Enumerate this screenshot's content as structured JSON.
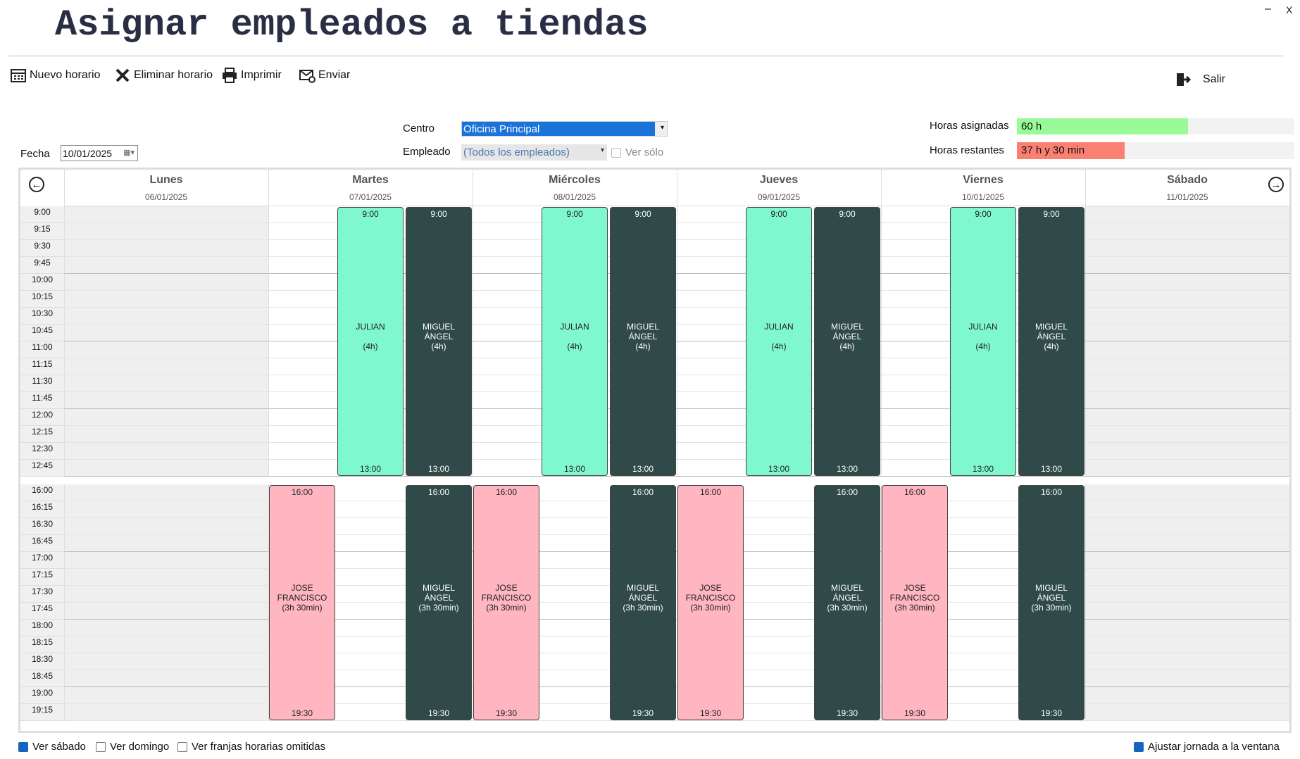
{
  "header": {
    "title": "Asignar empleados a tiendas",
    "minimize": "–",
    "close": "X"
  },
  "toolbar": [
    "Nuevo horario",
    "Eliminar horario",
    "Imprimir",
    "Enviar"
  ],
  "exit": "Salir",
  "filters": {
    "date_label": "Fecha",
    "date": "10/01/2025",
    "center_label": "Centro",
    "center": "Oficina Principal",
    "employee_label": "Empleado",
    "employee": "(Todos los empleados)",
    "only_label": "Ver sólo"
  },
  "hours": {
    "assigned_label": "Horas asignadas",
    "assigned": "60 h",
    "remaining_label": "Horas restantes",
    "remaining": "37 h y 30 min"
  },
  "sections": [
    {
      "times": [
        "9:00",
        "9:15",
        "9:30",
        "9:45",
        "10:00",
        "10:15",
        "10:30",
        "10:45",
        "11:00",
        "11:15",
        "11:30",
        "11:45",
        "12:00",
        "12:15",
        "12:30",
        "12:45"
      ]
    },
    {
      "times": [
        "16:00",
        "16:15",
        "16:30",
        "16:45",
        "17:00",
        "17:15",
        "17:30",
        "17:45",
        "18:00",
        "18:15",
        "18:30",
        "18:45",
        "19:00",
        "19:15"
      ]
    }
  ],
  "days": [
    {
      "name": "Lunes",
      "date": "06/01/2025",
      "shaded": true,
      "lanes": [
        [],
        [],
        []
      ]
    },
    {
      "name": "Martes",
      "date": "07/01/2025",
      "shaded": false,
      "lanes": [
        [
          {
            "name": "JOSE FRANCISCO",
            "duration": "(3h 30min)",
            "start": "16:00",
            "end": "19:30",
            "color": "#ffb6c1"
          }
        ],
        [
          {
            "name": "JULIAN",
            "duration": "(4h)",
            "start": "9:00",
            "end": "13:00",
            "color": "#7ff8cf"
          }
        ],
        [
          {
            "name": "MIGUEL ÁNGEL",
            "duration": "(4h)",
            "start": "9:00",
            "end": "13:00",
            "color": "#2f4a48"
          },
          {
            "name": "MIGUEL ÁNGEL",
            "duration": "(3h 30min)",
            "start": "16:00",
            "end": "19:30",
            "color": "#2f4a48"
          }
        ]
      ]
    },
    {
      "name": "Miércoles",
      "date": "08/01/2025",
      "shaded": false,
      "lanes": [
        [
          {
            "name": "JOSE FRANCISCO",
            "duration": "(3h 30min)",
            "start": "16:00",
            "end": "19:30",
            "color": "#ffb6c1"
          }
        ],
        [
          {
            "name": "JULIAN",
            "duration": "(4h)",
            "start": "9:00",
            "end": "13:00",
            "color": "#7ff8cf"
          }
        ],
        [
          {
            "name": "MIGUEL ÁNGEL",
            "duration": "(4h)",
            "start": "9:00",
            "end": "13:00",
            "color": "#2f4a48"
          },
          {
            "name": "MIGUEL ÁNGEL",
            "duration": "(3h 30min)",
            "start": "16:00",
            "end": "19:30",
            "color": "#2f4a48"
          }
        ]
      ]
    },
    {
      "name": "Jueves",
      "date": "09/01/2025",
      "shaded": false,
      "lanes": [
        [
          {
            "name": "JOSE FRANCISCO",
            "duration": "(3h 30min)",
            "start": "16:00",
            "end": "19:30",
            "color": "#ffb6c1"
          }
        ],
        [
          {
            "name": "JULIAN",
            "duration": "(4h)",
            "start": "9:00",
            "end": "13:00",
            "color": "#7ff8cf"
          }
        ],
        [
          {
            "name": "MIGUEL ÁNGEL",
            "duration": "(4h)",
            "start": "9:00",
            "end": "13:00",
            "color": "#2f4a48"
          },
          {
            "name": "MIGUEL ÁNGEL",
            "duration": "(3h 30min)",
            "start": "16:00",
            "end": "19:30",
            "color": "#2f4a48"
          }
        ]
      ]
    },
    {
      "name": "Viernes",
      "date": "10/01/2025",
      "shaded": false,
      "lanes": [
        [
          {
            "name": "JOSE FRANCISCO",
            "duration": "(3h 30min)",
            "start": "16:00",
            "end": "19:30",
            "color": "#ffb6c1"
          }
        ],
        [
          {
            "name": "JULIAN",
            "duration": "(4h)",
            "start": "9:00",
            "end": "13:00",
            "color": "#7ff8cf"
          }
        ],
        [
          {
            "name": "MIGUEL ÁNGEL",
            "duration": "(4h)",
            "start": "9:00",
            "end": "13:00",
            "color": "#2f4a48"
          },
          {
            "name": "MIGUEL ÁNGEL",
            "duration": "(3h 30min)",
            "start": "16:00",
            "end": "19:30",
            "color": "#2f4a48"
          }
        ]
      ]
    },
    {
      "name": "Sábado",
      "date": "11/01/2025",
      "shaded": true,
      "lanes": [
        [],
        [],
        []
      ]
    }
  ],
  "footer": {
    "saturday": "Ver sábado",
    "sunday": "Ver domingo",
    "omitted": "Ver franjas horarias omitidas",
    "fit": "Ajustar jornada a la ventana"
  }
}
